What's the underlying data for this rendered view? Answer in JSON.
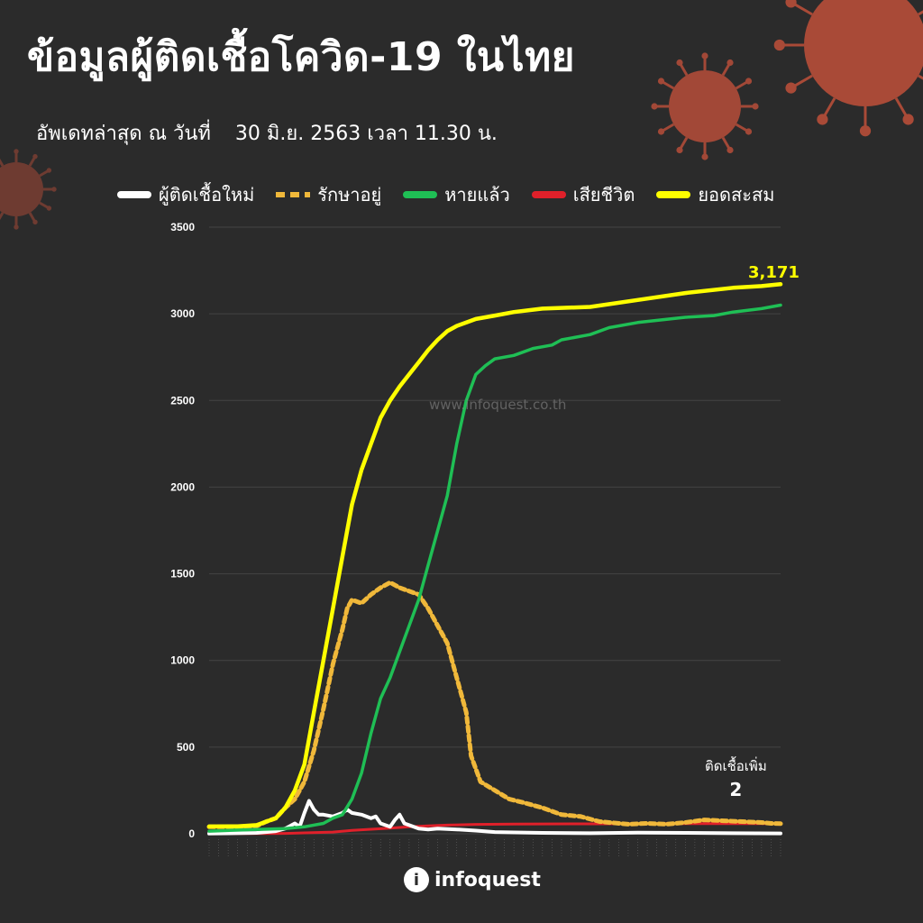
{
  "title": "ข้อมูลผู้ติดเชื้อโควิด-19 ในไทย",
  "subtitle": {
    "prefix": "อัพเดทล่าสุด ณ วันที่",
    "datetime": "30 มิ.ย. 2563 เวลา 11.30 น."
  },
  "watermark": "www.infoquest.co.th",
  "brand": "infoquest",
  "annotation": {
    "label": "ติดเชื้อเพิ่ม",
    "value": "2"
  },
  "final_total_label": "3,171",
  "colors": {
    "background": "#2b2b2b",
    "new_cases": "#ffffff",
    "active": "#f0b83a",
    "recovered": "#1fbf55",
    "deaths": "#e0202a",
    "cumulative": "#ffff00",
    "virus": "#c0503a"
  },
  "chart_data": {
    "type": "line",
    "title": "",
    "xlabel": "",
    "ylabel": "",
    "ylim": [
      0,
      3500
    ],
    "yticks": [
      "3500",
      "3000",
      "2500",
      "2000",
      "1500",
      "1000",
      "500",
      "0"
    ],
    "grid": true,
    "legend_position": "top",
    "x_range": [
      "1 มี.ค.",
      "30 มิ.ย."
    ],
    "series": [
      {
        "name": "ผู้ติดเชื้อใหม่",
        "style": "solid",
        "points": [
          [
            0,
            1
          ],
          [
            10,
            5
          ],
          [
            14,
            15
          ],
          [
            16,
            30
          ],
          [
            18,
            60
          ],
          [
            19,
            40
          ],
          [
            20,
            120
          ],
          [
            21,
            190
          ],
          [
            22,
            140
          ],
          [
            23,
            110
          ],
          [
            24,
            110
          ],
          [
            26,
            100
          ],
          [
            28,
            120
          ],
          [
            29,
            140
          ],
          [
            30,
            120
          ],
          [
            32,
            110
          ],
          [
            34,
            90
          ],
          [
            35,
            100
          ],
          [
            36,
            60
          ],
          [
            38,
            40
          ],
          [
            39,
            80
          ],
          [
            40,
            110
          ],
          [
            41,
            60
          ],
          [
            42,
            50
          ],
          [
            44,
            30
          ],
          [
            46,
            25
          ],
          [
            48,
            30
          ],
          [
            52,
            25
          ],
          [
            56,
            18
          ],
          [
            60,
            10
          ],
          [
            64,
            8
          ],
          [
            70,
            5
          ],
          [
            80,
            3
          ],
          [
            90,
            6
          ],
          [
            100,
            5
          ],
          [
            110,
            3
          ],
          [
            120,
            2
          ]
        ]
      },
      {
        "name": "รักษาอยู่",
        "style": "dashed",
        "points": [
          [
            0,
            40
          ],
          [
            6,
            40
          ],
          [
            10,
            45
          ],
          [
            12,
            70
          ],
          [
            14,
            90
          ],
          [
            16,
            150
          ],
          [
            18,
            200
          ],
          [
            20,
            300
          ],
          [
            22,
            480
          ],
          [
            24,
            720
          ],
          [
            26,
            980
          ],
          [
            28,
            1180
          ],
          [
            29,
            1300
          ],
          [
            30,
            1350
          ],
          [
            32,
            1330
          ],
          [
            34,
            1380
          ],
          [
            36,
            1420
          ],
          [
            38,
            1450
          ],
          [
            40,
            1420
          ],
          [
            42,
            1400
          ],
          [
            44,
            1380
          ],
          [
            46,
            1300
          ],
          [
            48,
            1200
          ],
          [
            50,
            1100
          ],
          [
            52,
            900
          ],
          [
            54,
            700
          ],
          [
            55,
            450
          ],
          [
            57,
            300
          ],
          [
            60,
            250
          ],
          [
            63,
            200
          ],
          [
            66,
            180
          ],
          [
            70,
            150
          ],
          [
            74,
            110
          ],
          [
            78,
            100
          ],
          [
            82,
            70
          ],
          [
            88,
            55
          ],
          [
            92,
            60
          ],
          [
            96,
            55
          ],
          [
            100,
            65
          ],
          [
            104,
            80
          ],
          [
            108,
            75
          ],
          [
            112,
            70
          ],
          [
            116,
            65
          ],
          [
            118,
            60
          ],
          [
            120,
            58
          ]
        ]
      },
      {
        "name": "หายแล้ว",
        "style": "solid",
        "points": [
          [
            0,
            15
          ],
          [
            10,
            25
          ],
          [
            16,
            30
          ],
          [
            20,
            40
          ],
          [
            24,
            60
          ],
          [
            26,
            90
          ],
          [
            28,
            110
          ],
          [
            30,
            200
          ],
          [
            32,
            350
          ],
          [
            34,
            580
          ],
          [
            35,
            680
          ],
          [
            36,
            780
          ],
          [
            38,
            900
          ],
          [
            40,
            1050
          ],
          [
            42,
            1200
          ],
          [
            44,
            1350
          ],
          [
            46,
            1550
          ],
          [
            48,
            1750
          ],
          [
            50,
            1950
          ],
          [
            52,
            2250
          ],
          [
            54,
            2500
          ],
          [
            56,
            2650
          ],
          [
            58,
            2700
          ],
          [
            60,
            2740
          ],
          [
            64,
            2760
          ],
          [
            68,
            2800
          ],
          [
            72,
            2820
          ],
          [
            74,
            2850
          ],
          [
            80,
            2880
          ],
          [
            84,
            2920
          ],
          [
            90,
            2950
          ],
          [
            100,
            2980
          ],
          [
            106,
            2990
          ],
          [
            110,
            3010
          ],
          [
            116,
            3030
          ],
          [
            120,
            3050
          ]
        ]
      },
      {
        "name": "เสียชีวิต",
        "style": "solid",
        "points": [
          [
            0,
            1
          ],
          [
            10,
            1
          ],
          [
            16,
            2
          ],
          [
            20,
            5
          ],
          [
            26,
            10
          ],
          [
            30,
            19
          ],
          [
            34,
            26
          ],
          [
            38,
            32
          ],
          [
            42,
            40
          ],
          [
            46,
            46
          ],
          [
            50,
            50
          ],
          [
            56,
            54
          ],
          [
            64,
            56
          ],
          [
            80,
            57
          ],
          [
            100,
            58
          ],
          [
            120,
            58
          ]
        ]
      },
      {
        "name": "ยอดสะสม",
        "style": "solid",
        "points": [
          [
            0,
            42
          ],
          [
            6,
            43
          ],
          [
            10,
            50
          ],
          [
            12,
            70
          ],
          [
            14,
            90
          ],
          [
            16,
            150
          ],
          [
            18,
            250
          ],
          [
            20,
            400
          ],
          [
            22,
            700
          ],
          [
            24,
            1000
          ],
          [
            26,
            1300
          ],
          [
            28,
            1600
          ],
          [
            30,
            1900
          ],
          [
            32,
            2100
          ],
          [
            34,
            2250
          ],
          [
            36,
            2400
          ],
          [
            38,
            2500
          ],
          [
            40,
            2580
          ],
          [
            42,
            2650
          ],
          [
            44,
            2720
          ],
          [
            46,
            2790
          ],
          [
            48,
            2850
          ],
          [
            50,
            2900
          ],
          [
            52,
            2930
          ],
          [
            54,
            2950
          ],
          [
            56,
            2970
          ],
          [
            60,
            2990
          ],
          [
            64,
            3010
          ],
          [
            70,
            3030
          ],
          [
            80,
            3040
          ],
          [
            90,
            3080
          ],
          [
            100,
            3120
          ],
          [
            110,
            3150
          ],
          [
            116,
            3160
          ],
          [
            120,
            3171
          ]
        ]
      }
    ]
  }
}
